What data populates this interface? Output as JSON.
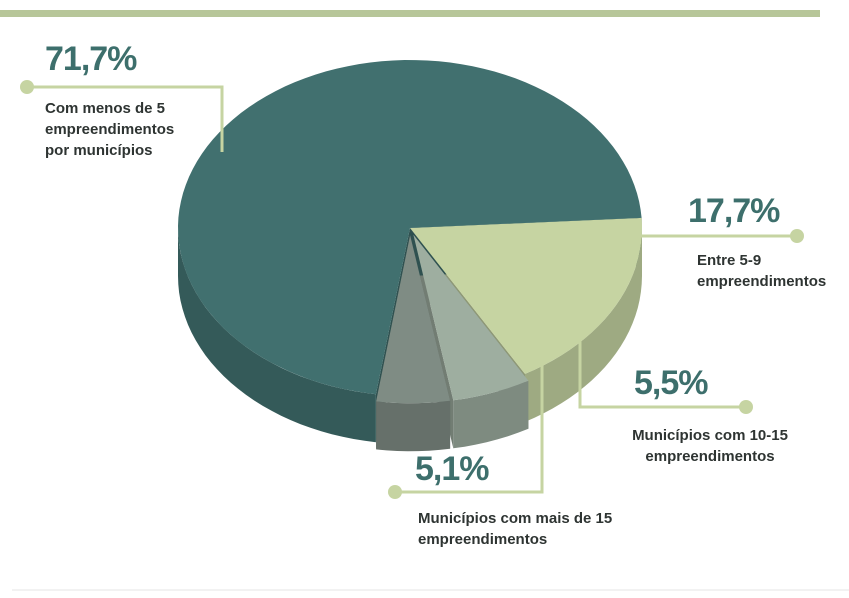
{
  "chart_data": {
    "type": "pie",
    "categories": [
      "Entre 5-9 empreendimentos",
      "Municípios com 10-15 empreendimentos",
      "Municípios com mais de 15 empreendimentos",
      "Com menos de 5 empreendimentos por municípios"
    ],
    "values": [
      17.7,
      5.5,
      5.1,
      71.7
    ],
    "value_labels": [
      "17,7%",
      "5,5%",
      "5,1%",
      "71,7%"
    ],
    "colors": [
      "#c6d4a2",
      "#9eaea0",
      "#7f8c84",
      "#41706f"
    ]
  }
}
